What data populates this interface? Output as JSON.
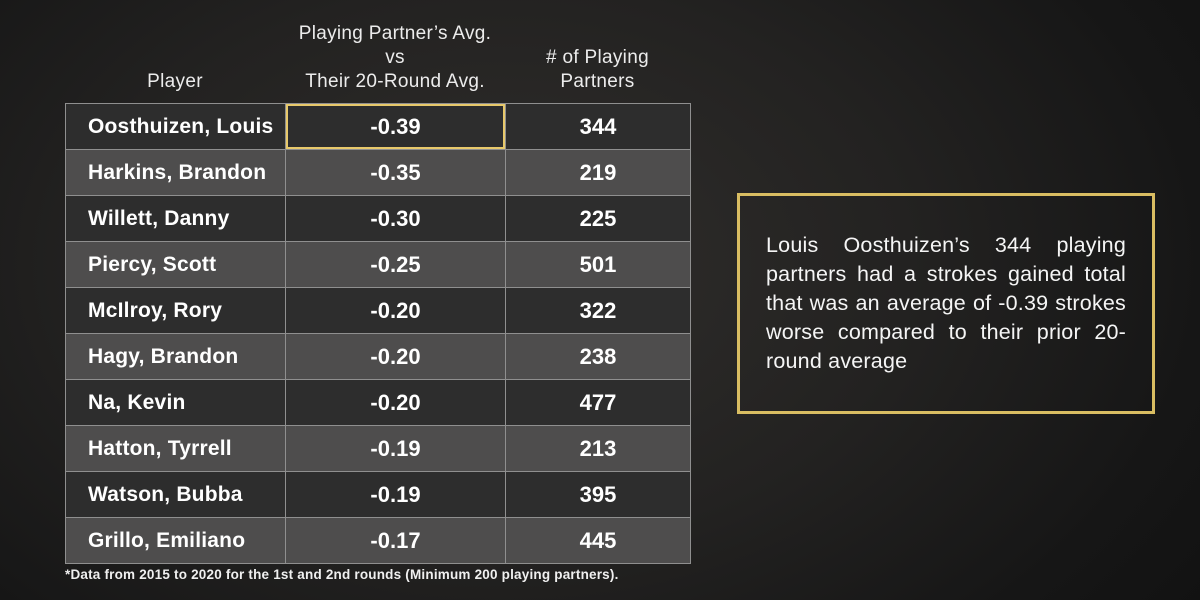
{
  "chart_data": {
    "type": "table",
    "title": "",
    "columns": [
      "Player",
      "Playing Partner’s Avg. vs Their 20-Round Avg.",
      "# of Playing Partners"
    ],
    "rows": [
      [
        "Oosthuizen, Louis",
        -0.39,
        344
      ],
      [
        "Harkins, Brandon",
        -0.35,
        219
      ],
      [
        "Willett, Danny",
        -0.3,
        225
      ],
      [
        "Piercy, Scott",
        -0.25,
        501
      ],
      [
        "McIlroy, Rory",
        -0.2,
        322
      ],
      [
        "Hagy, Brandon",
        -0.2,
        238
      ],
      [
        "Na, Kevin",
        -0.2,
        477
      ],
      [
        "Hatton, Tyrrell",
        -0.19,
        213
      ],
      [
        "Watson, Bubba",
        -0.19,
        395
      ],
      [
        "Grillo, Emiliano",
        -0.17,
        445
      ]
    ],
    "notes": "First row's middle cell is highlighted with a gold outline",
    "footnote": "*Data from 2015 to 2020 for the 1st and 2nd rounds (Minimum 200 playing partners)."
  },
  "table": {
    "header": {
      "col1": "Player",
      "col2": "Playing Partner’s Avg.\nvs\nTheir 20-Round Avg.",
      "col3": "# of Playing\nPartners"
    },
    "rows": [
      {
        "player": "Oosthuizen, Louis",
        "avg": "-0.39",
        "partners": "344",
        "highlight_avg": true
      },
      {
        "player": "Harkins, Brandon",
        "avg": "-0.35",
        "partners": "219",
        "highlight_avg": false
      },
      {
        "player": "Willett, Danny",
        "avg": "-0.30",
        "partners": "225",
        "highlight_avg": false
      },
      {
        "player": "Piercy, Scott",
        "avg": "-0.25",
        "partners": "501",
        "highlight_avg": false
      },
      {
        "player": "McIlroy, Rory",
        "avg": "-0.20",
        "partners": "322",
        "highlight_avg": false
      },
      {
        "player": "Hagy, Brandon",
        "avg": "-0.20",
        "partners": "238",
        "highlight_avg": false
      },
      {
        "player": "Na, Kevin",
        "avg": "-0.20",
        "partners": "477",
        "highlight_avg": false
      },
      {
        "player": "Hatton, Tyrrell",
        "avg": "-0.19",
        "partners": "213",
        "highlight_avg": false
      },
      {
        "player": "Watson, Bubba",
        "avg": "-0.19",
        "partners": "395",
        "highlight_avg": false
      },
      {
        "player": "Grillo, Emiliano",
        "avg": "-0.17",
        "partners": "445",
        "highlight_avg": false
      }
    ]
  },
  "callout": {
    "text": "Louis Oosthuizen’s 344 playing partners had a strokes gained total that was an average of -0.39 strokes worse compared to their prior 20-round average"
  },
  "footnote": "*Data from 2015 to 2020 for the 1st and 2nd rounds (Minimum 200 playing partners).",
  "colors": {
    "gold_highlight": "#e8c96b",
    "gold_callout_border": "#d9bd62",
    "row_dark": "#2d2d2d",
    "row_light": "#4e4d4d",
    "cell_border": "#8f8f8f",
    "background_center": "#302e2c",
    "background_edge": "#111111"
  }
}
